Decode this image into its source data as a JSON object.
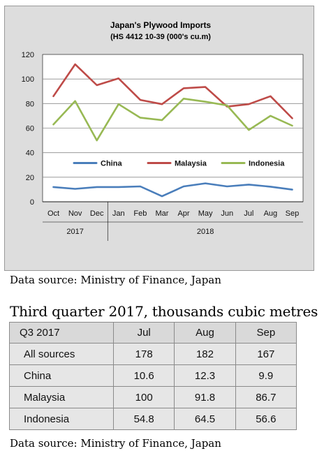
{
  "chart_data": {
    "type": "line",
    "title": "Japan's Plywood Imports",
    "subtitle": "(HS 4412 10-39  (000's cu.m)",
    "x": [
      "Oct",
      "Nov",
      "Dec",
      "Jan",
      "Feb",
      "Mar",
      "Apr",
      "May",
      "Jun",
      "Jul",
      "Aug",
      "Sep"
    ],
    "year_labels": [
      {
        "label": "2017",
        "from": "Oct",
        "to": "Dec"
      },
      {
        "label": "2018",
        "from": "Jan",
        "to": "Sep"
      }
    ],
    "ylim": [
      0,
      120
    ],
    "yticks": [
      0,
      20,
      40,
      60,
      80,
      100,
      120
    ],
    "grid": true,
    "legend_placement": "inside-middle",
    "series": [
      {
        "name": "China",
        "color": "#4a7ebb",
        "values": [
          12,
          10.5,
          12,
          12,
          12.5,
          4.5,
          12.5,
          15,
          12.5,
          14,
          12.3,
          9.9
        ]
      },
      {
        "name": "Malaysia",
        "color": "#be4b48",
        "values": [
          86,
          112,
          95,
          100.5,
          83,
          79.5,
          92.5,
          93.5,
          77.5,
          79.5,
          86,
          68
        ]
      },
      {
        "name": "Indonesia",
        "color": "#98b954",
        "values": [
          63,
          82,
          50,
          79.5,
          68.5,
          66.5,
          84,
          81.5,
          78.5,
          58.5,
          70,
          62
        ]
      }
    ]
  },
  "source_top": "Data source: Ministry of Finance, Japan",
  "table_caption": "Third quarter 2017, thousands cubic metres",
  "table": {
    "headers": [
      "Q3  2017",
      "Jul",
      "Aug",
      "Sep"
    ],
    "rows": [
      {
        "label": "All sources",
        "jul": "178",
        "aug": "182",
        "sep": "167"
      },
      {
        "label": "China",
        "jul": "10.6",
        "aug": "12.3",
        "sep": "9.9"
      },
      {
        "label": "Malaysia",
        "jul": "100",
        "aug": "91.8",
        "sep": "86.7"
      },
      {
        "label": "Indonesia",
        "jul": "54.8",
        "aug": "64.5",
        "sep": "56.6"
      }
    ]
  },
  "source_bottom": "Data source: Ministry of Finance, Japan"
}
